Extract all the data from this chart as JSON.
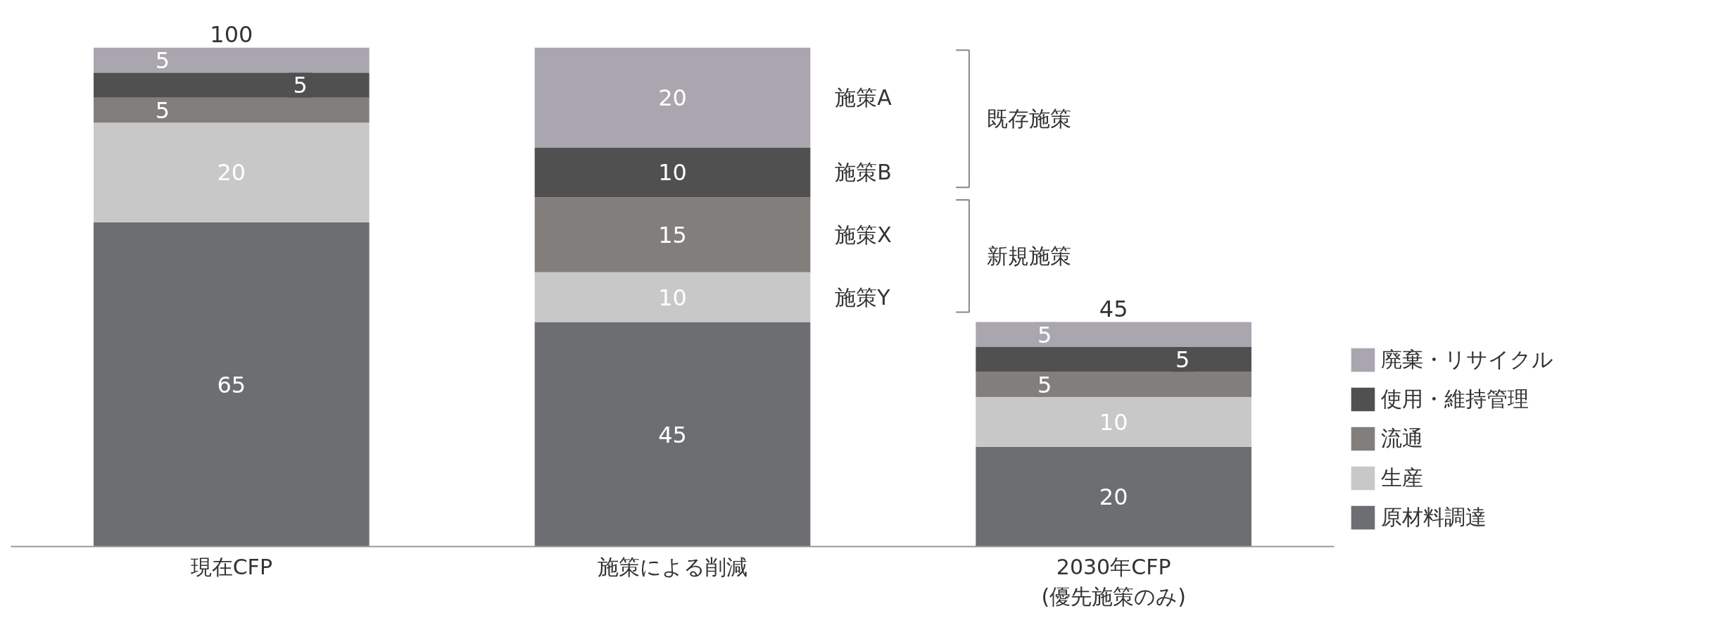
{
  "chart_data": {
    "type": "bar",
    "stacked": true,
    "data_labels": true,
    "legend": "right",
    "grid": false,
    "categories": [
      "現在CFP",
      "施策による削減",
      "2030年CFP\n(優先施策のみ)"
    ],
    "series": [
      {
        "name": "原材料調達",
        "color": "#6d6e72",
        "values": [
          65,
          45,
          20
        ]
      },
      {
        "name": "生産",
        "color": "#c8c8c8",
        "values": [
          20,
          10,
          10
        ]
      },
      {
        "name": "流通",
        "color": "#827e7c",
        "values": [
          5,
          15,
          5
        ]
      },
      {
        "name": "使用・維持管理",
        "color": "#505050",
        "values": [
          5,
          10,
          5
        ]
      },
      {
        "name": "廃棄・リサイクル",
        "color": "#a9a6b0",
        "values": [
          5,
          20,
          5
        ]
      }
    ],
    "totals": [
      "100",
      null,
      "45"
    ],
    "annotations": [
      "施策A",
      "施策B",
      "既存施策",
      "施策X",
      "施策Y",
      "新規施策"
    ]
  }
}
